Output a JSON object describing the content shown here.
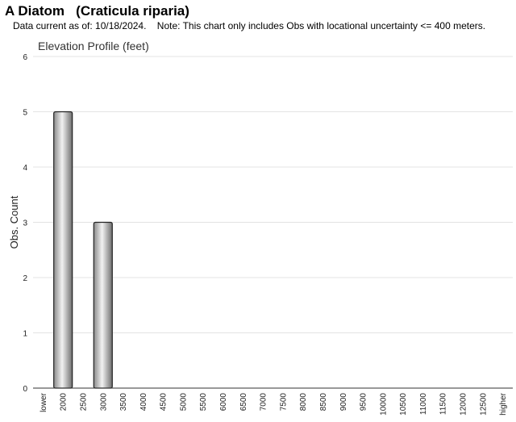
{
  "header": {
    "title": "A Diatom   (Craticula riparia)",
    "note": "Data current as of: 10/18/2024.    Note: This chart only includes Obs with locational uncertainty <= 400 meters."
  },
  "chart_data": {
    "type": "bar",
    "title": "Elevation Profile (feet)",
    "xlabel": "",
    "ylabel": "Obs. Count",
    "ylim": [
      0,
      6
    ],
    "yticks": [
      0,
      1,
      2,
      3,
      4,
      5,
      6
    ],
    "grid": true,
    "categories": [
      "lower",
      "2000",
      "2500",
      "3000",
      "3500",
      "4000",
      "4500",
      "5000",
      "5500",
      "6000",
      "6500",
      "7000",
      "7500",
      "8000",
      "8500",
      "9000",
      "9500",
      "10000",
      "10500",
      "11000",
      "11500",
      "12000",
      "12500",
      "higher"
    ],
    "values": [
      0,
      5,
      0,
      3,
      0,
      0,
      0,
      0,
      0,
      0,
      0,
      0,
      0,
      0,
      0,
      0,
      0,
      0,
      0,
      0,
      0,
      0,
      0,
      0
    ]
  }
}
